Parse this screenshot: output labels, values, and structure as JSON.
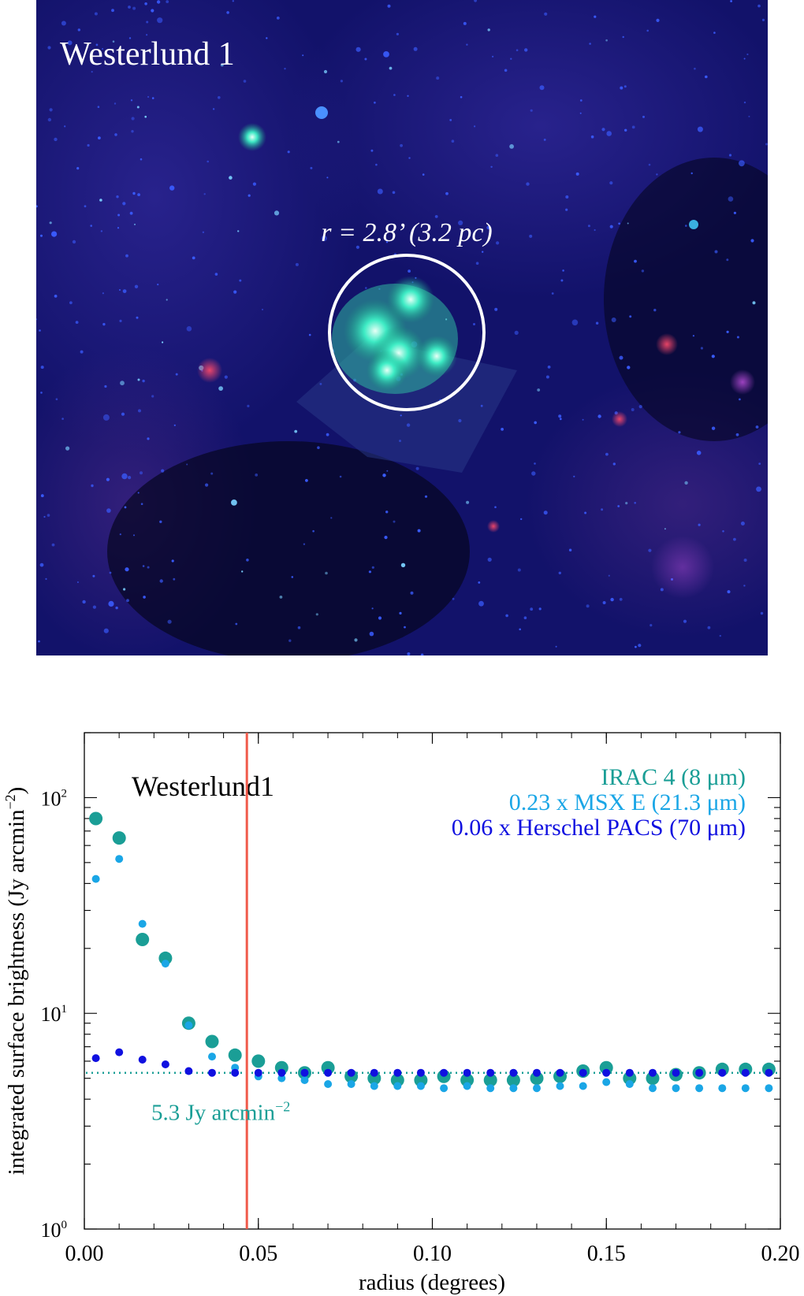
{
  "image_panel": {
    "title": "Westerlund 1",
    "aperture_label": "r = 2.8’ (3.2 pc)",
    "colors": {
      "sky_dark": "#05051f",
      "sky_mid": "#1a1a7a",
      "cluster": "#3ff2c8",
      "circle": "#ffffff"
    }
  },
  "chart_data": {
    "type": "scatter",
    "title": "Westerlund1",
    "xlabel": "radius (degrees)",
    "ylabel": "integrated surface brightness (Jy arcmin",
    "ylabel_exp": "−2",
    "ylabel_end": ")",
    "xlim": [
      0,
      0.2
    ],
    "ylim": [
      1,
      200
    ],
    "y_scale": "log",
    "x_ticks": [
      0.0,
      0.05,
      0.1,
      0.15,
      0.2
    ],
    "x_tick_labels": [
      "0.00",
      "0.05",
      "0.10",
      "0.15",
      "0.20"
    ],
    "y_ticks": [
      1,
      10,
      100
    ],
    "y_tick_labels": [
      {
        "base": "10",
        "exp": "0"
      },
      {
        "base": "10",
        "exp": "1"
      },
      {
        "base": "10",
        "exp": "2"
      }
    ],
    "legend_position": "top-right",
    "vertical_line": {
      "x": 0.0467,
      "color": "#f05a4a"
    },
    "background_level": {
      "y": 5.3,
      "color": "#1a9e96",
      "label": "5.3 Jy arcmin",
      "label_exp": "−2"
    },
    "series": [
      {
        "name": "IRAC 4 (8 μm)",
        "color": "#1a9e96",
        "size": "large",
        "x": [
          0.0033,
          0.01,
          0.0167,
          0.0233,
          0.03,
          0.0367,
          0.0433,
          0.05,
          0.0567,
          0.0633,
          0.07,
          0.0767,
          0.0833,
          0.09,
          0.0967,
          0.1033,
          0.11,
          0.1167,
          0.1233,
          0.13,
          0.1367,
          0.1433,
          0.15,
          0.1567,
          0.1633,
          0.17,
          0.1767,
          0.1833,
          0.19,
          0.1967
        ],
        "y": [
          80,
          65,
          22,
          18,
          9,
          7.4,
          6.4,
          6.0,
          5.6,
          5.3,
          5.6,
          5.1,
          5.0,
          4.9,
          4.9,
          5.1,
          4.9,
          4.9,
          4.9,
          5.0,
          5.1,
          5.4,
          5.6,
          5.0,
          5.0,
          5.2,
          5.3,
          5.5,
          5.5,
          5.5
        ]
      },
      {
        "name": "0.23 x MSX E (21.3 μm)",
        "color": "#1aa6e6",
        "size": "small",
        "x": [
          0.0033,
          0.01,
          0.0167,
          0.0233,
          0.03,
          0.0367,
          0.0433,
          0.05,
          0.0567,
          0.0633,
          0.07,
          0.0767,
          0.0833,
          0.09,
          0.0967,
          0.1033,
          0.11,
          0.1167,
          0.1233,
          0.13,
          0.1367,
          0.1433,
          0.15,
          0.1567,
          0.1633,
          0.17,
          0.1767,
          0.1833,
          0.19,
          0.1967
        ],
        "y": [
          42,
          52,
          26,
          17,
          8.8,
          6.3,
          5.6,
          5.1,
          5.0,
          4.9,
          4.7,
          4.7,
          4.6,
          4.6,
          4.6,
          4.5,
          4.6,
          4.5,
          4.5,
          4.5,
          4.6,
          4.6,
          4.8,
          4.7,
          4.5,
          4.5,
          4.5,
          4.5,
          4.5,
          4.5
        ]
      },
      {
        "name": "0.06 x Herschel PACS (70 μm)",
        "color": "#1010e0",
        "size": "small",
        "x": [
          0.0033,
          0.01,
          0.0167,
          0.0233,
          0.03,
          0.0367,
          0.0433,
          0.05,
          0.0567,
          0.0633,
          0.07,
          0.0767,
          0.0833,
          0.09,
          0.0967,
          0.1033,
          0.11,
          0.1167,
          0.1233,
          0.13,
          0.1367,
          0.1433,
          0.15,
          0.1567,
          0.1633,
          0.17,
          0.1767,
          0.1833,
          0.19,
          0.1967
        ],
        "y": [
          6.2,
          6.6,
          6.1,
          5.8,
          5.4,
          5.3,
          5.3,
          5.3,
          5.3,
          5.3,
          5.3,
          5.3,
          5.3,
          5.3,
          5.3,
          5.3,
          5.3,
          5.3,
          5.3,
          5.3,
          5.3,
          5.3,
          5.3,
          5.3,
          5.3,
          5.3,
          5.3,
          5.3,
          5.3,
          5.3
        ]
      }
    ]
  }
}
